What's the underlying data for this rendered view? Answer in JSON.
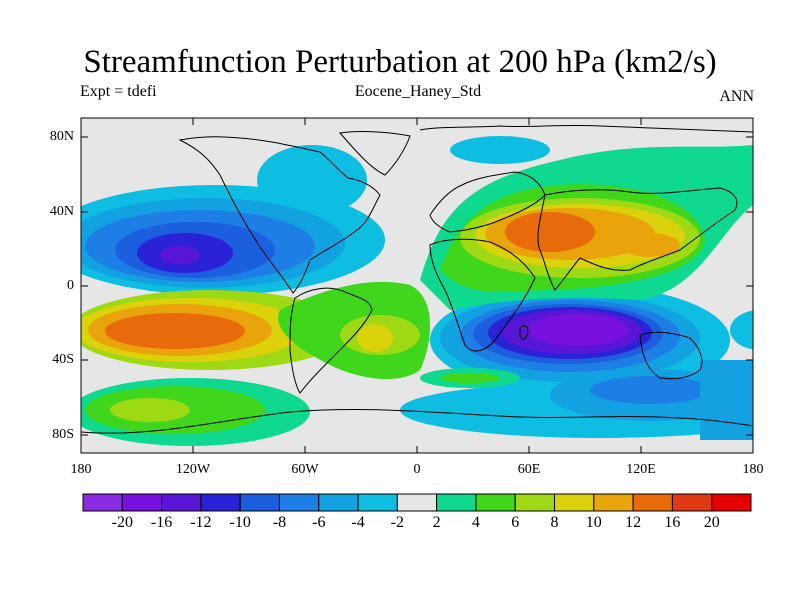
{
  "title": "Streamfunction Perturbation at 200 hPa (km2/s)",
  "subtitle_left": "Expt = tdefi",
  "subtitle_center": "Eocene_Haney_Std",
  "subtitle_right": "ANN",
  "lat_ticks": [
    "80N",
    "40N",
    "0",
    "40S",
    "80S"
  ],
  "lon_ticks": [
    "180",
    "120W",
    "60W",
    "0",
    "60E",
    "120E",
    "180"
  ],
  "colorbar": {
    "tick_labels": [
      "-20",
      "-16",
      "-12",
      "-10",
      "-8",
      "-6",
      "-4",
      "-2",
      "2",
      "4",
      "6",
      "8",
      "10",
      "12",
      "16",
      "20"
    ],
    "colors": [
      "#8a2be2",
      "#7a10e0",
      "#5a16d6",
      "#2b22d8",
      "#1c5fde",
      "#1d7fe6",
      "#12a2e2",
      "#0dbde2",
      "#e6e6e6",
      "#0ed98f",
      "#3fd61c",
      "#9ed914",
      "#dbd20c",
      "#e8a40a",
      "#e86a0a",
      "#e03a14",
      "#e60000"
    ]
  },
  "colors": {
    "background": "#e6e6e6",
    "coastline": "#000000"
  }
}
